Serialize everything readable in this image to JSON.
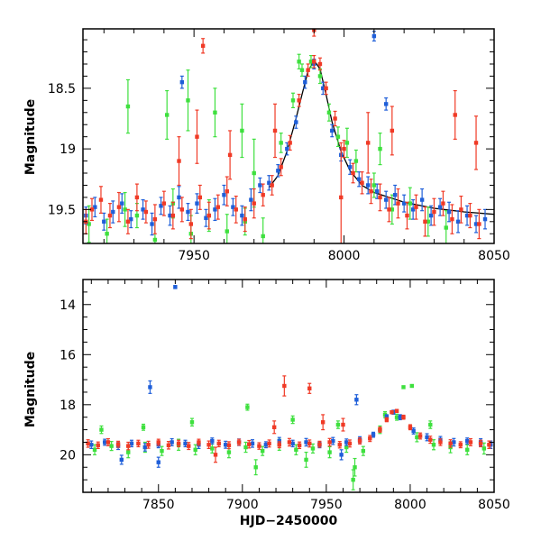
{
  "colors": {
    "blue": "#1f5fd9",
    "green": "#3ee03e",
    "red": "#f03a26",
    "model": "#000000"
  },
  "chart_data": [
    {
      "type": "scatter",
      "panel": "top",
      "title": "",
      "xlabel": "",
      "ylabel": "Magnitude",
      "xlim": [
        7913,
        8050
      ],
      "ylim": [
        19.78,
        18.01
      ],
      "y_inverted": true,
      "x_ticks": [
        7950,
        8000,
        8050
      ],
      "y_ticks": [
        18.5,
        19,
        19.5
      ],
      "x_tick_labels": [
        "7950",
        "8000",
        "8050"
      ],
      "y_tick_labels": [
        "18.5",
        "19",
        "19.5"
      ],
      "model_curve": {
        "color": "#000000",
        "x": [
          7975,
          7978,
          7981,
          7984,
          7986,
          7988,
          7990,
          7992,
          7994,
          7996,
          7999,
          8002,
          8006,
          8010,
          8020,
          8030,
          8040,
          8050
        ],
        "y": [
          19.32,
          19.22,
          19.02,
          18.75,
          18.55,
          18.36,
          18.27,
          18.34,
          18.55,
          18.78,
          19.02,
          19.18,
          19.3,
          19.36,
          19.44,
          19.49,
          19.52,
          19.54
        ]
      },
      "series": [
        {
          "color": "#1f5fd9",
          "x": [
            7914,
            7917,
            7920,
            7923,
            7926,
            7929,
            7933,
            7936,
            7939,
            7942,
            7945,
            7948,
            7951,
            7954,
            7957,
            7960,
            7963,
            7966,
            7969,
            7972,
            7975,
            7978,
            7981,
            7984,
            7987,
            7990,
            7993,
            7996,
            7999,
            8002,
            8005,
            8008,
            8011,
            8014,
            8017,
            8020,
            8023,
            8026,
            8029,
            8032,
            8035,
            8038,
            8041,
            8044,
            8047,
            7946,
            8014,
            8010
          ],
          "y": [
            19.55,
            19.48,
            19.6,
            19.52,
            19.45,
            19.58,
            19.5,
            19.62,
            19.47,
            19.55,
            19.4,
            19.52,
            19.45,
            19.57,
            19.5,
            19.38,
            19.48,
            19.55,
            19.42,
            19.3,
            19.28,
            19.18,
            19.0,
            18.78,
            18.45,
            18.3,
            18.5,
            18.85,
            19.05,
            19.15,
            19.25,
            19.3,
            19.35,
            19.42,
            19.38,
            19.45,
            19.5,
            19.42,
            19.55,
            19.48,
            19.52,
            19.6,
            19.55,
            19.62,
            19.58,
            18.45,
            18.63,
            18.07
          ],
          "err": [
            0.07,
            0.08,
            0.07,
            0.09,
            0.08,
            0.07,
            0.08,
            0.09,
            0.07,
            0.08,
            0.09,
            0.07,
            0.08,
            0.07,
            0.09,
            0.08,
            0.07,
            0.08,
            0.09,
            0.06,
            0.06,
            0.05,
            0.05,
            0.05,
            0.05,
            0.04,
            0.05,
            0.05,
            0.05,
            0.06,
            0.06,
            0.07,
            0.06,
            0.07,
            0.08,
            0.07,
            0.08,
            0.09,
            0.08,
            0.07,
            0.08,
            0.09,
            0.08,
            0.07,
            0.08,
            0.05,
            0.05,
            0.04
          ]
        },
        {
          "color": "#3ee03e",
          "x": [
            7915,
            7921,
            7927,
            7931,
            7937,
            7943,
            7949,
            7955,
            7961,
            7967,
            7973,
            7979,
            7983,
            7986,
            7989,
            7992,
            7995,
            7998,
            8004,
            8010,
            8016,
            8022,
            8028,
            8034,
            7928,
            7941,
            7948,
            7957,
            7966,
            7985,
            8001,
            8012,
            7970
          ],
          "y": [
            19.62,
            19.7,
            19.5,
            19.55,
            19.75,
            19.45,
            19.7,
            19.55,
            19.68,
            19.6,
            19.72,
            18.95,
            18.6,
            18.35,
            18.28,
            18.4,
            18.7,
            18.9,
            19.1,
            19.3,
            19.5,
            19.45,
            19.6,
            19.65,
            18.65,
            18.72,
            18.6,
            18.7,
            18.85,
            18.28,
            18.95,
            19.0,
            19.2
          ],
          "err": [
            0.15,
            0.12,
            0.14,
            0.1,
            0.16,
            0.12,
            0.15,
            0.13,
            0.14,
            0.11,
            0.15,
            0.08,
            0.06,
            0.05,
            0.05,
            0.06,
            0.07,
            0.08,
            0.09,
            0.1,
            0.12,
            0.13,
            0.12,
            0.14,
            0.22,
            0.2,
            0.25,
            0.2,
            0.22,
            0.06,
            0.12,
            0.13,
            0.28
          ]
        },
        {
          "color": "#f03a26",
          "x": [
            7914,
            7916,
            7919,
            7922,
            7925,
            7928,
            7931,
            7934,
            7937,
            7940,
            7943,
            7946,
            7949,
            7952,
            7955,
            7958,
            7961,
            7964,
            7967,
            7970,
            7973,
            7976,
            7979,
            7982,
            7985,
            7988,
            7990,
            7992,
            7994,
            7997,
            8000,
            8003,
            8006,
            8009,
            8012,
            8015,
            8018,
            8021,
            8024,
            8027,
            8030,
            8033,
            8036,
            8039,
            8042,
            8045,
            7945,
            7951,
            7962,
            7977,
            8008,
            8016,
            8037,
            8044,
            7953,
            7990,
            7999
          ],
          "y": [
            19.6,
            19.5,
            19.42,
            19.55,
            19.48,
            19.6,
            19.4,
            19.52,
            19.58,
            19.45,
            19.55,
            19.5,
            19.62,
            19.4,
            19.55,
            19.48,
            19.35,
            19.5,
            19.58,
            19.45,
            19.38,
            19.3,
            19.15,
            18.95,
            18.6,
            18.35,
            18.28,
            18.3,
            18.5,
            18.75,
            19.0,
            19.2,
            19.28,
            19.35,
            19.4,
            19.5,
            19.45,
            19.55,
            19.48,
            19.6,
            19.52,
            19.45,
            19.58,
            19.5,
            19.55,
            19.62,
            19.1,
            18.9,
            19.05,
            18.85,
            18.95,
            18.85,
            18.72,
            18.95,
            18.15,
            18.02,
            19.4
          ],
          "err": [
            0.1,
            0.09,
            0.11,
            0.1,
            0.12,
            0.1,
            0.11,
            0.09,
            0.12,
            0.1,
            0.11,
            0.1,
            0.12,
            0.1,
            0.11,
            0.1,
            0.12,
            0.11,
            0.1,
            0.12,
            0.09,
            0.08,
            0.07,
            0.06,
            0.05,
            0.05,
            0.05,
            0.05,
            0.05,
            0.06,
            0.07,
            0.08,
            0.09,
            0.1,
            0.11,
            0.1,
            0.12,
            0.11,
            0.1,
            0.12,
            0.11,
            0.1,
            0.12,
            0.11,
            0.1,
            0.12,
            0.2,
            0.22,
            0.2,
            0.22,
            0.25,
            0.2,
            0.2,
            0.22,
            0.06,
            0.05,
            0.45
          ]
        }
      ]
    },
    {
      "type": "scatter",
      "panel": "bottom",
      "title": "",
      "xlabel": "HJD−2450000",
      "ylabel": "Magnitude",
      "xlim": [
        7805,
        8050
      ],
      "ylim": [
        21.5,
        13.0
      ],
      "y_inverted": true,
      "x_ticks": [
        7850,
        7900,
        7950,
        8000,
        8050
      ],
      "y_ticks": [
        14,
        16,
        18,
        20
      ],
      "x_tick_labels": [
        "7850",
        "7900",
        "7950",
        "8000",
        "8050"
      ],
      "y_tick_labels": [
        "14",
        "16",
        "18",
        "20"
      ],
      "series": [
        {
          "color": "#1f5fd9",
          "x": [
            7810,
            7818,
            7826,
            7834,
            7842,
            7850,
            7858,
            7866,
            7874,
            7882,
            7890,
            7898,
            7906,
            7914,
            7922,
            7930,
            7938,
            7946,
            7954,
            7962,
            7970,
            7978,
            7986,
            7990,
            7994,
            8002,
            8010,
            8018,
            8026,
            8034,
            8042,
            8048,
            7860,
            7845,
            7968,
            7850,
            7828,
            7959
          ],
          "y": [
            19.6,
            19.5,
            19.65,
            19.55,
            19.7,
            19.6,
            19.5,
            19.55,
            19.6,
            19.45,
            19.6,
            19.5,
            19.55,
            19.6,
            19.45,
            19.55,
            19.5,
            19.6,
            19.45,
            19.5,
            19.4,
            19.2,
            18.5,
            18.3,
            18.5,
            19.05,
            19.3,
            19.4,
            19.5,
            19.45,
            19.5,
            19.6,
            13.3,
            17.3,
            17.8,
            20.3,
            20.2,
            20.0
          ],
          "err": [
            0.15,
            0.12,
            0.14,
            0.13,
            0.15,
            0.12,
            0.14,
            0.13,
            0.15,
            0.12,
            0.14,
            0.13,
            0.15,
            0.12,
            0.14,
            0.13,
            0.15,
            0.12,
            0.14,
            0.13,
            0.12,
            0.1,
            0.1,
            0.08,
            0.1,
            0.12,
            0.14,
            0.13,
            0.15,
            0.12,
            0.14,
            0.15,
            0.06,
            0.25,
            0.2,
            0.2,
            0.18,
            0.2
          ]
        },
        {
          "color": "#3ee03e",
          "x": [
            7812,
            7822,
            7832,
            7842,
            7852,
            7862,
            7872,
            7882,
            7892,
            7902,
            7912,
            7922,
            7932,
            7942,
            7952,
            7962,
            7972,
            7982,
            7992,
            8004,
            8014,
            8024,
            8034,
            8044,
            7816,
            7841,
            7870,
            7903,
            7930,
            7957,
            7966,
            7985,
            7996,
            8001,
            8012,
            7908,
            7967,
            7938
          ],
          "y": [
            19.8,
            19.65,
            19.9,
            19.7,
            19.85,
            19.6,
            19.8,
            19.75,
            19.9,
            19.7,
            19.85,
            19.6,
            19.8,
            19.75,
            19.9,
            19.7,
            19.85,
            19.0,
            18.5,
            19.3,
            19.6,
            19.7,
            19.8,
            19.75,
            19.0,
            18.9,
            18.7,
            18.1,
            18.6,
            18.8,
            21.0,
            18.4,
            17.3,
            17.25,
            18.8,
            20.5,
            20.5,
            20.2
          ],
          "err": [
            0.2,
            0.18,
            0.22,
            0.2,
            0.18,
            0.22,
            0.2,
            0.18,
            0.22,
            0.2,
            0.18,
            0.22,
            0.2,
            0.18,
            0.22,
            0.2,
            0.18,
            0.15,
            0.12,
            0.18,
            0.2,
            0.22,
            0.2,
            0.22,
            0.15,
            0.12,
            0.15,
            0.12,
            0.15,
            0.15,
            0.4,
            0.12,
            0.05,
            0.05,
            0.15,
            0.3,
            0.35,
            0.3
          ]
        },
        {
          "color": "#f03a26",
          "x": [
            7808,
            7814,
            7820,
            7826,
            7832,
            7838,
            7844,
            7850,
            7856,
            7862,
            7868,
            7874,
            7880,
            7886,
            7892,
            7898,
            7904,
            7910,
            7916,
            7922,
            7928,
            7934,
            7940,
            7946,
            7952,
            7958,
            7964,
            7970,
            7976,
            7982,
            7986,
            7989,
            7992,
            7996,
            8000,
            8006,
            8012,
            8018,
            8024,
            8030,
            8036,
            8042,
            8047,
            7925,
            7940,
            7919,
            7948,
            7960,
            7884
          ],
          "y": [
            19.55,
            19.62,
            19.5,
            19.58,
            19.65,
            19.55,
            19.6,
            19.5,
            19.62,
            19.55,
            19.65,
            19.5,
            19.6,
            19.55,
            19.62,
            19.5,
            19.58,
            19.65,
            19.55,
            19.6,
            19.5,
            19.62,
            19.55,
            19.58,
            19.5,
            19.6,
            19.55,
            19.45,
            19.35,
            19.0,
            18.6,
            18.3,
            18.25,
            18.5,
            18.9,
            19.25,
            19.4,
            19.5,
            19.55,
            19.6,
            19.5,
            19.55,
            19.6,
            17.25,
            17.35,
            18.9,
            18.7,
            18.8,
            20.0
          ],
          "err": [
            0.15,
            0.13,
            0.14,
            0.12,
            0.15,
            0.13,
            0.14,
            0.12,
            0.15,
            0.13,
            0.14,
            0.12,
            0.15,
            0.13,
            0.14,
            0.12,
            0.15,
            0.13,
            0.14,
            0.12,
            0.15,
            0.13,
            0.14,
            0.12,
            0.15,
            0.13,
            0.14,
            0.12,
            0.12,
            0.1,
            0.08,
            0.06,
            0.06,
            0.08,
            0.1,
            0.12,
            0.14,
            0.13,
            0.15,
            0.12,
            0.14,
            0.13,
            0.15,
            0.4,
            0.2,
            0.25,
            0.3,
            0.25,
            0.3
          ]
        }
      ]
    }
  ]
}
